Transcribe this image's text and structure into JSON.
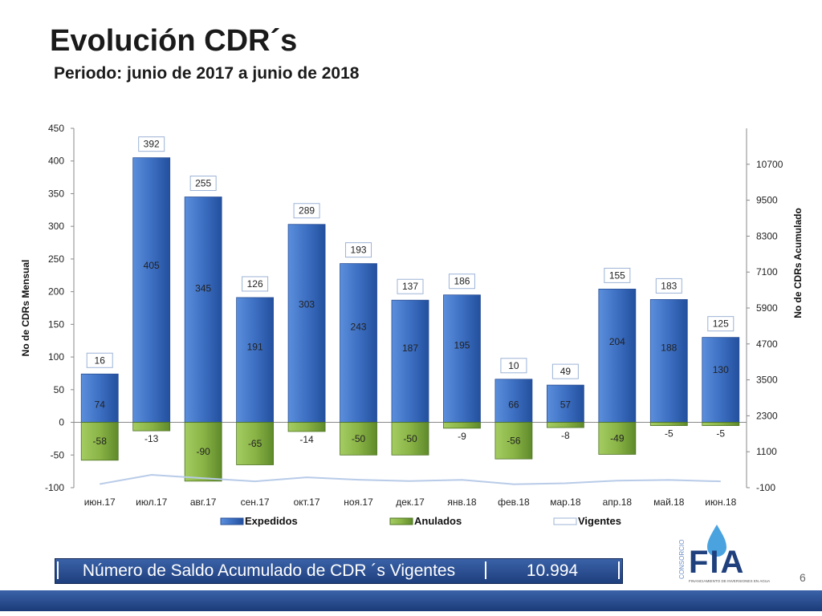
{
  "slide": {
    "title": "Evolución CDR´s",
    "subtitle": "Periodo: junio de 2017 a  junio de 2018",
    "page_number": "6"
  },
  "footer": {
    "label": "Número de Saldo Acumulado de CDR ´s Vigentes",
    "value": "10.994"
  },
  "logo": {
    "side_text": "CONSORCIO",
    "letters": "FIA",
    "tagline": "FINANCIAMIENTO DE INVERSIONES EN AGUA"
  },
  "colors": {
    "expedidos": "#3d6fc2",
    "anulados": "#8ab446",
    "vigentes": "#b8cbe8",
    "band": "#2a4d92"
  },
  "chart_data": {
    "type": "bar",
    "categories": [
      "июн.17",
      "июл.17",
      "авг.17",
      "сен.17",
      "окт.17",
      "ноя.17",
      "дек.17",
      "янв.18",
      "фев.18",
      "мар.18",
      "апр.18",
      "май.18",
      "июн.18"
    ],
    "ylabel": "No de CDRs Mensual",
    "ylabel_right": "No de CDRs Acumulado",
    "ylim": [
      -100,
      450
    ],
    "yticks": [
      -100,
      -50,
      0,
      50,
      100,
      150,
      200,
      250,
      300,
      350,
      400,
      450
    ],
    "ylim_right": [
      -100,
      11900
    ],
    "yticks_right": [
      -100,
      1100,
      2300,
      3500,
      4700,
      5900,
      7100,
      8300,
      9500,
      10700
    ],
    "grid": false,
    "legend_position": "bottom",
    "series": [
      {
        "name": "Expedidos",
        "values": [
          74,
          405,
          345,
          191,
          303,
          243,
          187,
          195,
          66,
          57,
          204,
          188,
          130
        ]
      },
      {
        "name": "Anulados",
        "values": [
          -58,
          -13,
          -90,
          -65,
          -14,
          -50,
          -50,
          -9,
          -56,
          -8,
          -49,
          -5,
          -5
        ]
      },
      {
        "name": "Vigentes",
        "values": [
          16,
          392,
          255,
          126,
          289,
          193,
          137,
          186,
          10,
          49,
          155,
          183,
          125
        ]
      }
    ]
  }
}
